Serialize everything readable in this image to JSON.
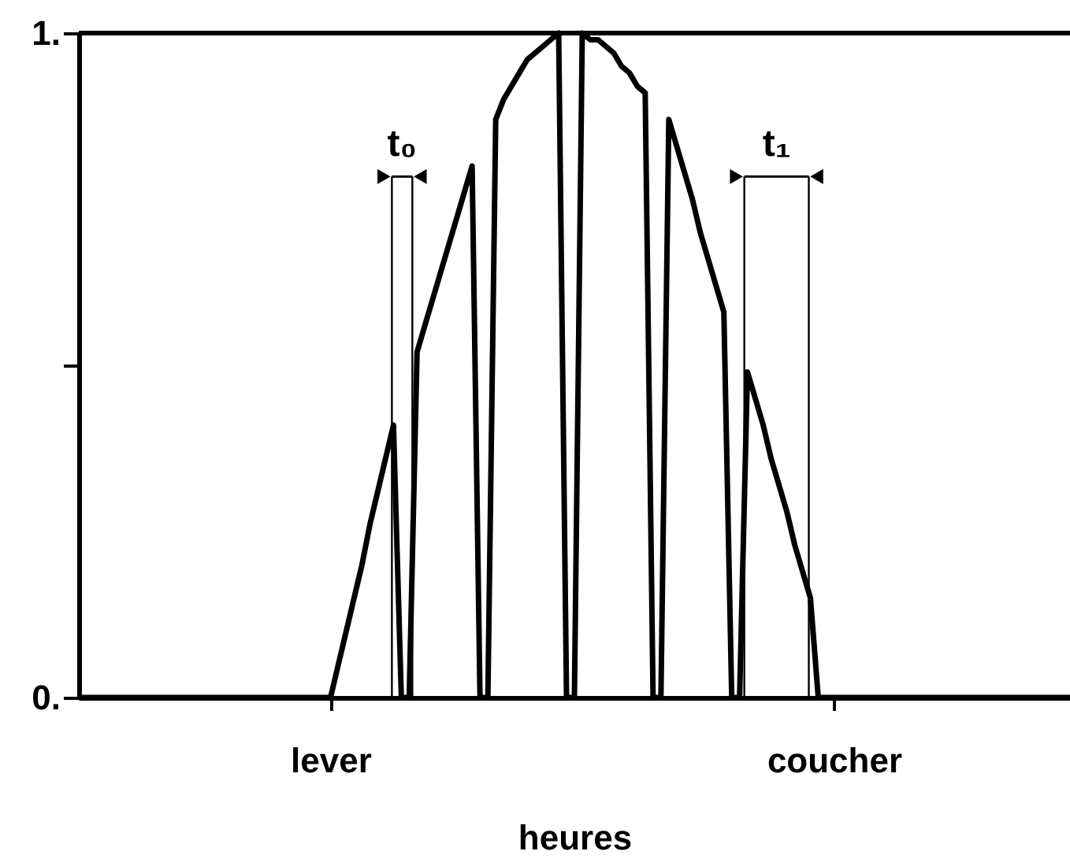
{
  "chart_data": {
    "type": "line",
    "xlabel": "heures",
    "ylim": [
      0,
      1
    ],
    "yticks": [
      {
        "value": 0,
        "label": "0."
      },
      {
        "value": 0.5,
        "label": null
      },
      {
        "value": 1,
        "label": "1."
      }
    ],
    "grid": false,
    "marker": "none",
    "line_style": "solid",
    "annotations": [
      "t₀",
      "t₁"
    ],
    "categories": [
      null,
      null,
      null,
      null,
      null,
      null,
      null,
      null,
      null,
      null,
      null,
      null,
      null,
      null,
      null,
      null,
      null,
      null,
      null,
      null,
      null,
      null,
      null,
      null,
      null,
      null,
      null,
      null,
      null,
      null,
      null,
      null,
      "lever",
      null,
      null,
      null,
      null,
      null,
      null,
      null,
      null,
      null,
      null,
      null,
      null,
      null,
      null,
      null,
      null,
      null,
      null,
      null,
      null,
      null,
      null,
      null,
      null,
      null,
      null,
      null,
      null,
      null,
      null,
      null,
      null,
      null,
      null,
      null,
      null,
      null,
      null,
      null,
      null,
      null,
      null,
      null,
      null,
      null,
      null,
      null,
      null,
      null,
      null,
      null,
      null,
      null,
      null,
      null,
      null,
      null,
      null,
      null,
      null,
      null,
      null,
      null,
      "coucher",
      null,
      null,
      null,
      null,
      null,
      null,
      null,
      null,
      null,
      null,
      null,
      null,
      null,
      null,
      null,
      null,
      null,
      null,
      null,
      null,
      null,
      null,
      null,
      null,
      null,
      null,
      null,
      null,
      null,
      null
    ],
    "series": [
      {
        "color": "#000000",
        "values": [
          0,
          0,
          0,
          0,
          0,
          0,
          0,
          0,
          0,
          0,
          0,
          0,
          0,
          0,
          0,
          0,
          0,
          0,
          0,
          0,
          0,
          0,
          0,
          0,
          0,
          0,
          0,
          0,
          0,
          0,
          0,
          0,
          0,
          0.05,
          0.1,
          0.15,
          0.2,
          0.26,
          0.31,
          0.36,
          0.41,
          0,
          0,
          0.52,
          0.56,
          0.6,
          0.64,
          0.68,
          0.72,
          0.76,
          0.8,
          0,
          0,
          0.87,
          0.9,
          0.92,
          0.94,
          0.96,
          0.97,
          0.98,
          0.99,
          1,
          0,
          0,
          1,
          0.99,
          0.99,
          0.98,
          0.97,
          0.95,
          0.94,
          0.92,
          0.91,
          0,
          0,
          0.87,
          0.83,
          0.79,
          0.75,
          0.7,
          0.66,
          0.62,
          0.58,
          0,
          0,
          0.49,
          0.45,
          0.41,
          0.36,
          0.32,
          0.28,
          0.23,
          0.19,
          0.15,
          0,
          0,
          0,
          0,
          0,
          0,
          0,
          0,
          0,
          0,
          0,
          0,
          0,
          0,
          0,
          0,
          0,
          0,
          0,
          0,
          0,
          0,
          0,
          0,
          0,
          0,
          0,
          0,
          0,
          0,
          0,
          0,
          0
        ]
      }
    ]
  }
}
